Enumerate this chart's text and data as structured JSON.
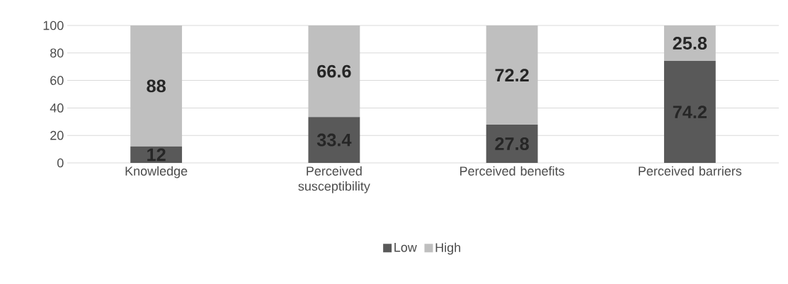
{
  "chart_data": {
    "type": "bar",
    "stacked": true,
    "categories": [
      "Knowledge",
      "Perceived susceptibility",
      "Perceived benefits",
      "Perceived barriers"
    ],
    "series": [
      {
        "name": "Low",
        "color": "#595959",
        "values": [
          12,
          33.4,
          27.8,
          74.2
        ]
      },
      {
        "name": "High",
        "color": "#bfbfbf",
        "values": [
          88,
          66.6,
          72.2,
          25.8
        ]
      }
    ],
    "ylim": [
      0,
      100
    ],
    "yticks": [
      0,
      20,
      40,
      60,
      80,
      100
    ],
    "grid": "y",
    "legend": "bottom",
    "data_labels": true
  }
}
